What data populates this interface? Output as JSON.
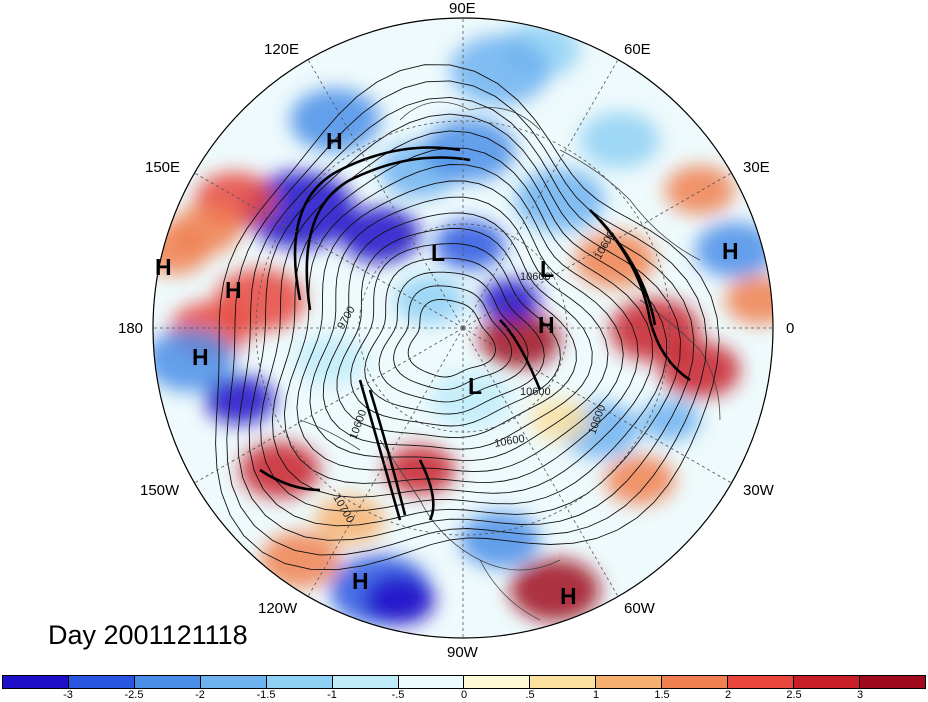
{
  "title": "Day 2001121118",
  "longitude_labels": [
    {
      "text": "90E"
    },
    {
      "text": "60E"
    },
    {
      "text": "30E"
    },
    {
      "text": "0"
    },
    {
      "text": "30W"
    },
    {
      "text": "60W"
    },
    {
      "text": "90W"
    },
    {
      "text": "120W"
    },
    {
      "text": "150W"
    },
    {
      "text": "180"
    },
    {
      "text": "150E"
    },
    {
      "text": "120E"
    }
  ],
  "pressure_centers": [
    "H",
    "H",
    "H",
    "H",
    "H",
    "H",
    "H",
    "H",
    "L",
    "L",
    "L"
  ],
  "contour_labels": [
    "9700",
    "10600",
    "10600",
    "10600",
    "10700",
    "10600",
    "10600",
    "10600"
  ],
  "colorbar": {
    "labels": [
      "-3",
      "-2.5",
      "-2",
      "-1.5",
      "-1",
      "-.5",
      "0",
      ".5",
      "1",
      "1.5",
      "2",
      "2.5",
      "3"
    ],
    "colors": [
      "#1e10c8",
      "#2a55e0",
      "#4a8ee8",
      "#6fb2f0",
      "#8fd0f5",
      "#c0ecfa",
      "#ebfafd",
      "#fdf8d6",
      "#fbe1a0",
      "#f7b070",
      "#f08050",
      "#e8463c",
      "#c81e28",
      "#a00a1e"
    ]
  }
}
